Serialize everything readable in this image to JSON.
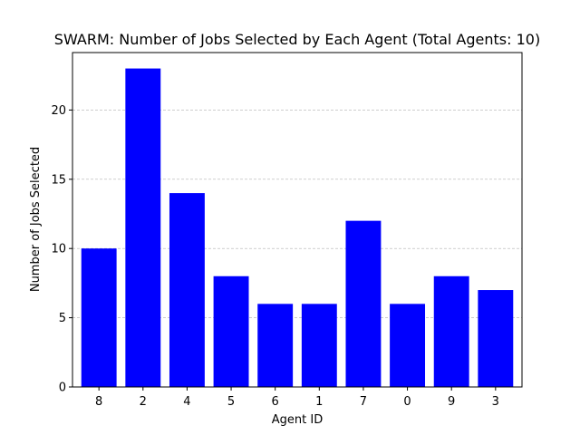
{
  "chart_data": {
    "type": "bar",
    "title": "SWARM: Number of Jobs Selected by Each Agent (Total Agents: 10)",
    "xlabel": "Agent ID",
    "ylabel": "Number of Jobs Selected",
    "categories": [
      "8",
      "2",
      "4",
      "5",
      "6",
      "1",
      "7",
      "0",
      "9",
      "3"
    ],
    "values": [
      10,
      23,
      14,
      8,
      6,
      6,
      12,
      6,
      8,
      7
    ],
    "ylim": [
      0,
      24.15
    ],
    "yticks": [
      0,
      5,
      10,
      15,
      20
    ],
    "grid": "y",
    "bar_color": "#0000ff",
    "legend": "none"
  }
}
